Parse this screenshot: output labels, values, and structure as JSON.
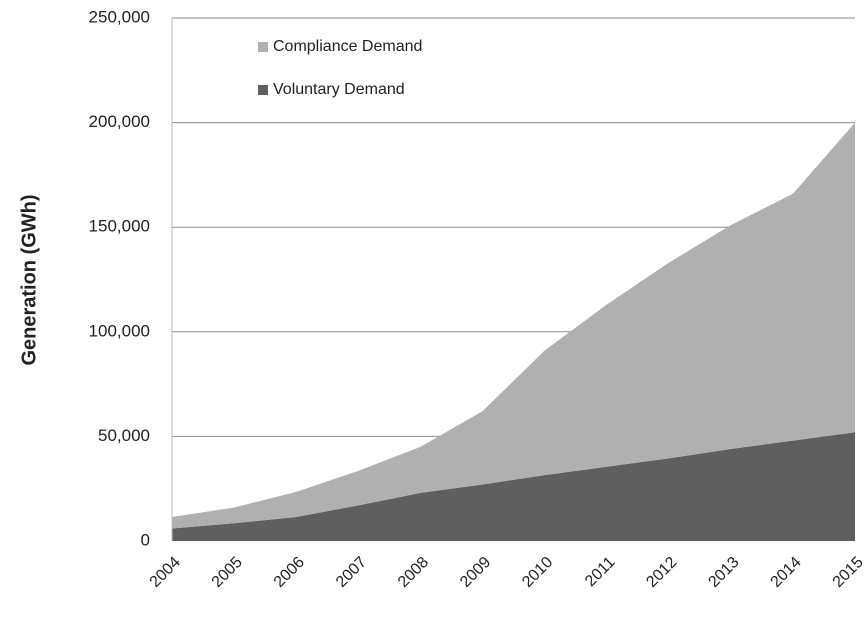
{
  "chart_data": {
    "type": "stacked-area",
    "y_label": "Generation (GWh)",
    "categories": [
      "2004",
      "2005",
      "2006",
      "2007",
      "2008",
      "2009",
      "2010",
      "2011",
      "2012",
      "2013",
      "2014",
      "2015"
    ],
    "series": [
      {
        "name": "Compliance Demand",
        "color": "#b0b0b0",
        "values": [
          5500,
          7500,
          12000,
          16500,
          22000,
          35000,
          59500,
          77500,
          93500,
          107000,
          118000,
          148000
        ]
      },
      {
        "name": "Voluntary Demand",
        "color": "#5f5f5f",
        "values": [
          6000,
          8500,
          11500,
          17000,
          23000,
          27000,
          31500,
          35500,
          39500,
          44000,
          48000,
          52000
        ]
      }
    ],
    "ylim": [
      0,
      250000
    ],
    "yticks": [
      0,
      {
        "value": 50000,
        "label": "50,000"
      },
      {
        "value": 100000,
        "label": "100,000"
      },
      {
        "value": 150000,
        "label": "150,000"
      },
      {
        "value": 200000,
        "label": "200,000"
      },
      {
        "value": 250000,
        "label": "250,000"
      }
    ],
    "grid": true
  }
}
